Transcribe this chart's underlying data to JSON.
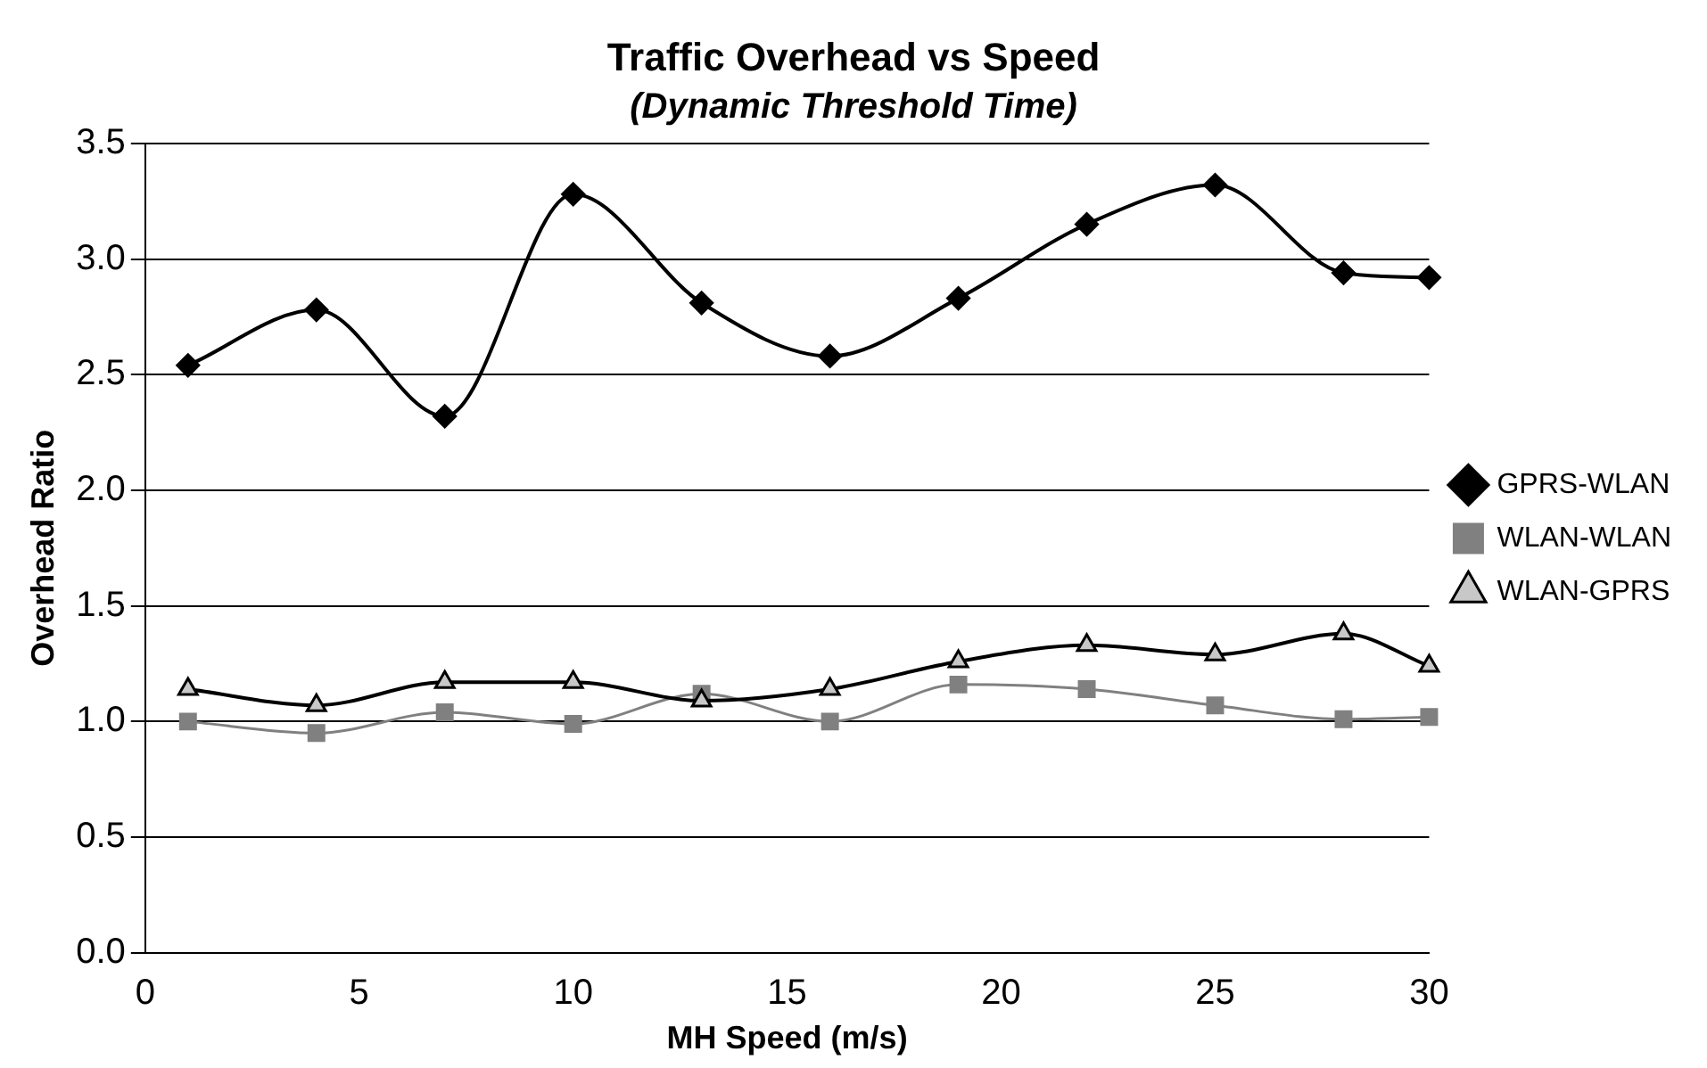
{
  "chart_data": {
    "type": "line",
    "title": "Traffic Overhead vs Speed",
    "subtitle": "(Dynamic Threshold Time)",
    "xlabel": "MH Speed (m/s)",
    "ylabel": "Overhead Ratio",
    "x": [
      1,
      4,
      7,
      10,
      13,
      16,
      19,
      22,
      25,
      28,
      30
    ],
    "xlim": [
      0,
      30
    ],
    "xticks": [
      0,
      5,
      10,
      15,
      20,
      25,
      30
    ],
    "ylim": [
      0,
      3.5
    ],
    "yticks": [
      {
        "value": 0,
        "label": "0.0"
      },
      0.5,
      {
        "value": 1,
        "label": "1.0"
      },
      1.5,
      {
        "value": 2,
        "label": "2.0"
      },
      2.5,
      {
        "value": 3,
        "label": "3.0"
      },
      3.5
    ],
    "grid": "y",
    "legend": "right",
    "series": [
      {
        "name": "GPRS-WLAN",
        "color": "#000000",
        "marker": "diamond",
        "values": [
          2.54,
          2.78,
          2.32,
          3.28,
          2.81,
          2.58,
          2.83,
          3.15,
          3.32,
          2.94,
          2.92
        ]
      },
      {
        "name": "WLAN-WLAN",
        "color": "#808080",
        "marker": "square",
        "values": [
          1.0,
          0.95,
          1.04,
          0.99,
          1.12,
          1.0,
          1.16,
          1.14,
          1.07,
          1.01,
          1.02
        ]
      },
      {
        "name": "WLAN-GPRS",
        "color": "#000000",
        "marker": "triangle",
        "values": [
          1.14,
          1.07,
          1.17,
          1.17,
          1.09,
          1.14,
          1.26,
          1.33,
          1.29,
          1.38,
          1.24
        ]
      }
    ]
  }
}
